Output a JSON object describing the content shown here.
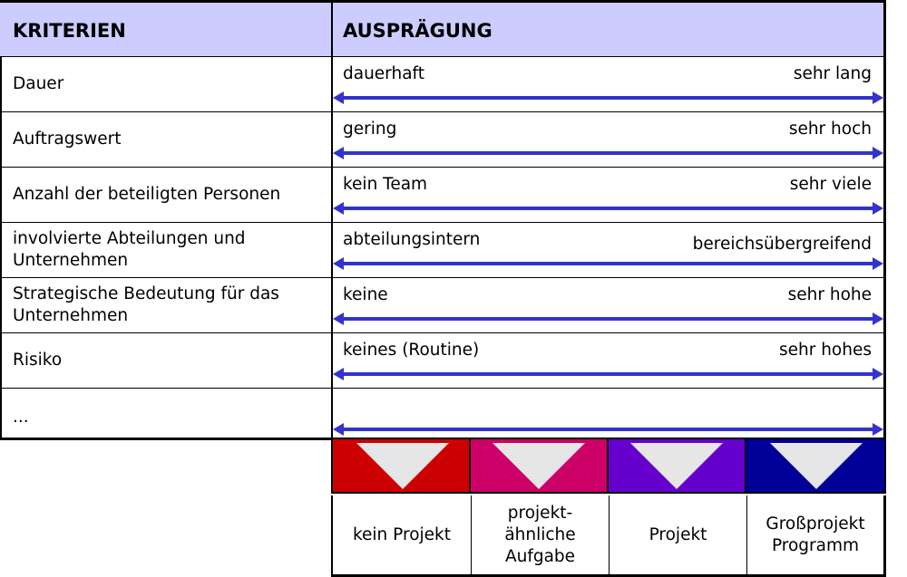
{
  "header": {
    "criteria": "KRITERIEN",
    "expression": "AUSPRÄGUNG"
  },
  "rows": [
    {
      "criterion": "Dauer",
      "left": "dauerhaft",
      "right": "sehr lang"
    },
    {
      "criterion": "Auftragswert",
      "left": "gering",
      "right": "sehr hoch"
    },
    {
      "criterion": "Anzahl der beteiligten Personen",
      "left": "kein Team",
      "right": "sehr viele"
    },
    {
      "criterion": "involvierte Abteilungen und Unternehmen",
      "left": "abteilungsintern",
      "right": "bereichsübergreifend"
    },
    {
      "criterion": "Strategische Bedeutung für das Unternehmen",
      "left": "keine",
      "right": "sehr hohe"
    },
    {
      "criterion": "Risiko",
      "left": "keines (Routine)",
      "right": "sehr hohes"
    },
    {
      "criterion": "...",
      "left": "",
      "right": ""
    }
  ],
  "categories": [
    {
      "label": "kein Projekt",
      "color": "#cc0000"
    },
    {
      "label": "projekt-ähnliche Aufgabe",
      "color": "#cc0066"
    },
    {
      "label": "Projekt",
      "color": "#6600cc"
    },
    {
      "label": "Großprojekt Programm",
      "color": "#000099"
    }
  ],
  "colors": {
    "header_bg": "#ccccff",
    "arrow": "#3333cc",
    "triangle": "#e6e6e6"
  }
}
